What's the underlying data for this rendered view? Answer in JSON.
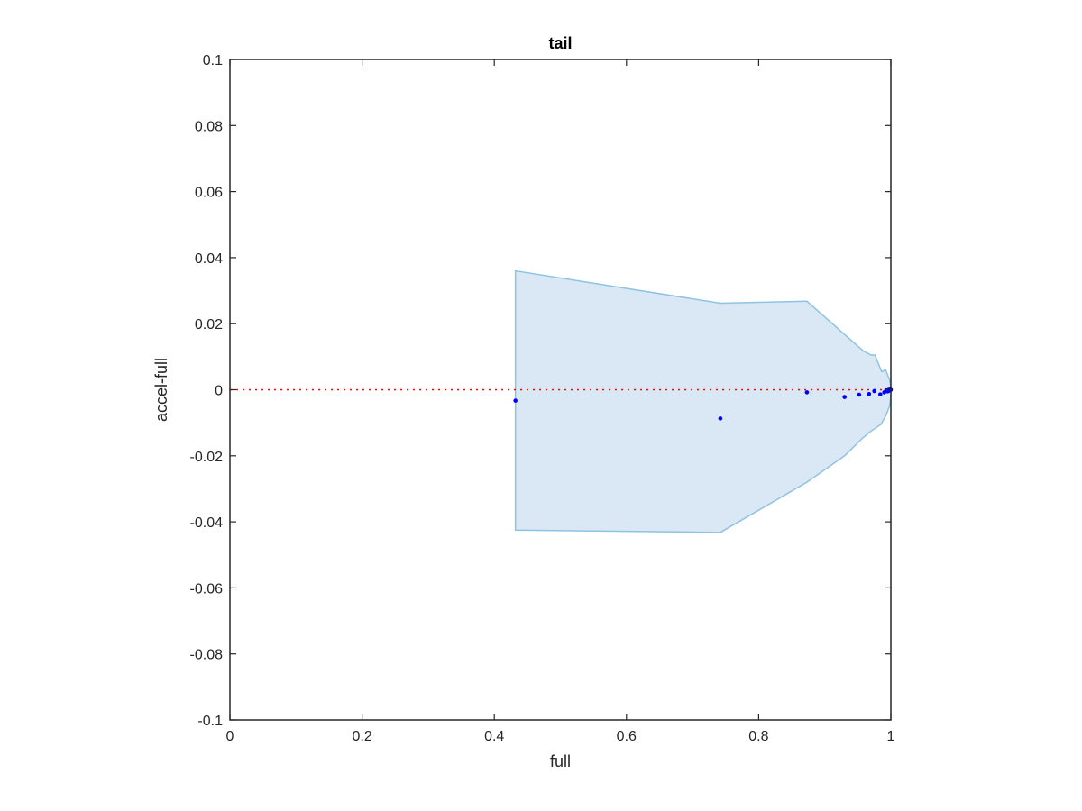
{
  "chart_data": {
    "type": "scatter",
    "title": "tail",
    "xlabel": "full",
    "ylabel": "accel-full",
    "xlim": [
      0,
      1
    ],
    "ylim": [
      -0.1,
      0.1
    ],
    "xticks": [
      0,
      0.2,
      0.4,
      0.6,
      0.8,
      1
    ],
    "xtick_labels": [
      "0",
      "0.2",
      "0.4",
      "0.6",
      "0.8",
      "1"
    ],
    "yticks": [
      -0.1,
      -0.08,
      -0.06,
      -0.04,
      -0.02,
      0,
      0.02,
      0.04,
      0.06,
      0.08,
      0.1
    ],
    "ytick_labels": [
      "-0.1",
      "-0.08",
      "-0.06",
      "-0.04",
      "-0.02",
      "0",
      "0.02",
      "0.04",
      "0.06",
      "0.08",
      "0.1"
    ],
    "grid": false,
    "reference_line": {
      "y": 0,
      "style": "dotted",
      "color": "#ff0000"
    },
    "band": {
      "color": "#d9e8f4",
      "edge_color": "#8ec3e3",
      "upper": [
        [
          0.432,
          0.036
        ],
        [
          0.742,
          0.0262
        ],
        [
          0.873,
          0.0268
        ],
        [
          0.958,
          0.0118
        ],
        [
          0.97,
          0.0105
        ],
        [
          0.976,
          0.0105
        ],
        [
          0.986,
          0.0055
        ],
        [
          0.992,
          0.006
        ],
        [
          0.995,
          0.0045
        ],
        [
          0.998,
          0.003
        ],
        [
          1.0,
          0.001
        ]
      ],
      "lower": [
        [
          0.432,
          -0.0425
        ],
        [
          0.742,
          -0.0432
        ],
        [
          0.873,
          -0.028
        ],
        [
          0.93,
          -0.02
        ],
        [
          0.958,
          -0.0145
        ],
        [
          0.97,
          -0.0125
        ],
        [
          0.985,
          -0.0105
        ],
        [
          0.992,
          -0.008
        ],
        [
          0.998,
          -0.005
        ],
        [
          1.0,
          -0.002
        ]
      ]
    },
    "series": [
      {
        "color": "#0000ff",
        "points": [
          [
            0.432,
            -0.0033
          ],
          [
            0.742,
            -0.0087
          ],
          [
            0.873,
            -0.0008
          ],
          [
            0.93,
            -0.0022
          ],
          [
            0.952,
            -0.0015
          ],
          [
            0.967,
            -0.0013
          ],
          [
            0.975,
            -0.0004
          ],
          [
            0.984,
            -0.0014
          ],
          [
            0.99,
            -0.0008
          ],
          [
            0.993,
            -0.0002
          ],
          [
            0.995,
            -0.0005
          ],
          [
            0.997,
            0.0
          ],
          [
            0.998,
            -0.0003
          ],
          [
            0.999,
            0.0001
          ],
          [
            1.0,
            0.0
          ]
        ]
      }
    ]
  }
}
